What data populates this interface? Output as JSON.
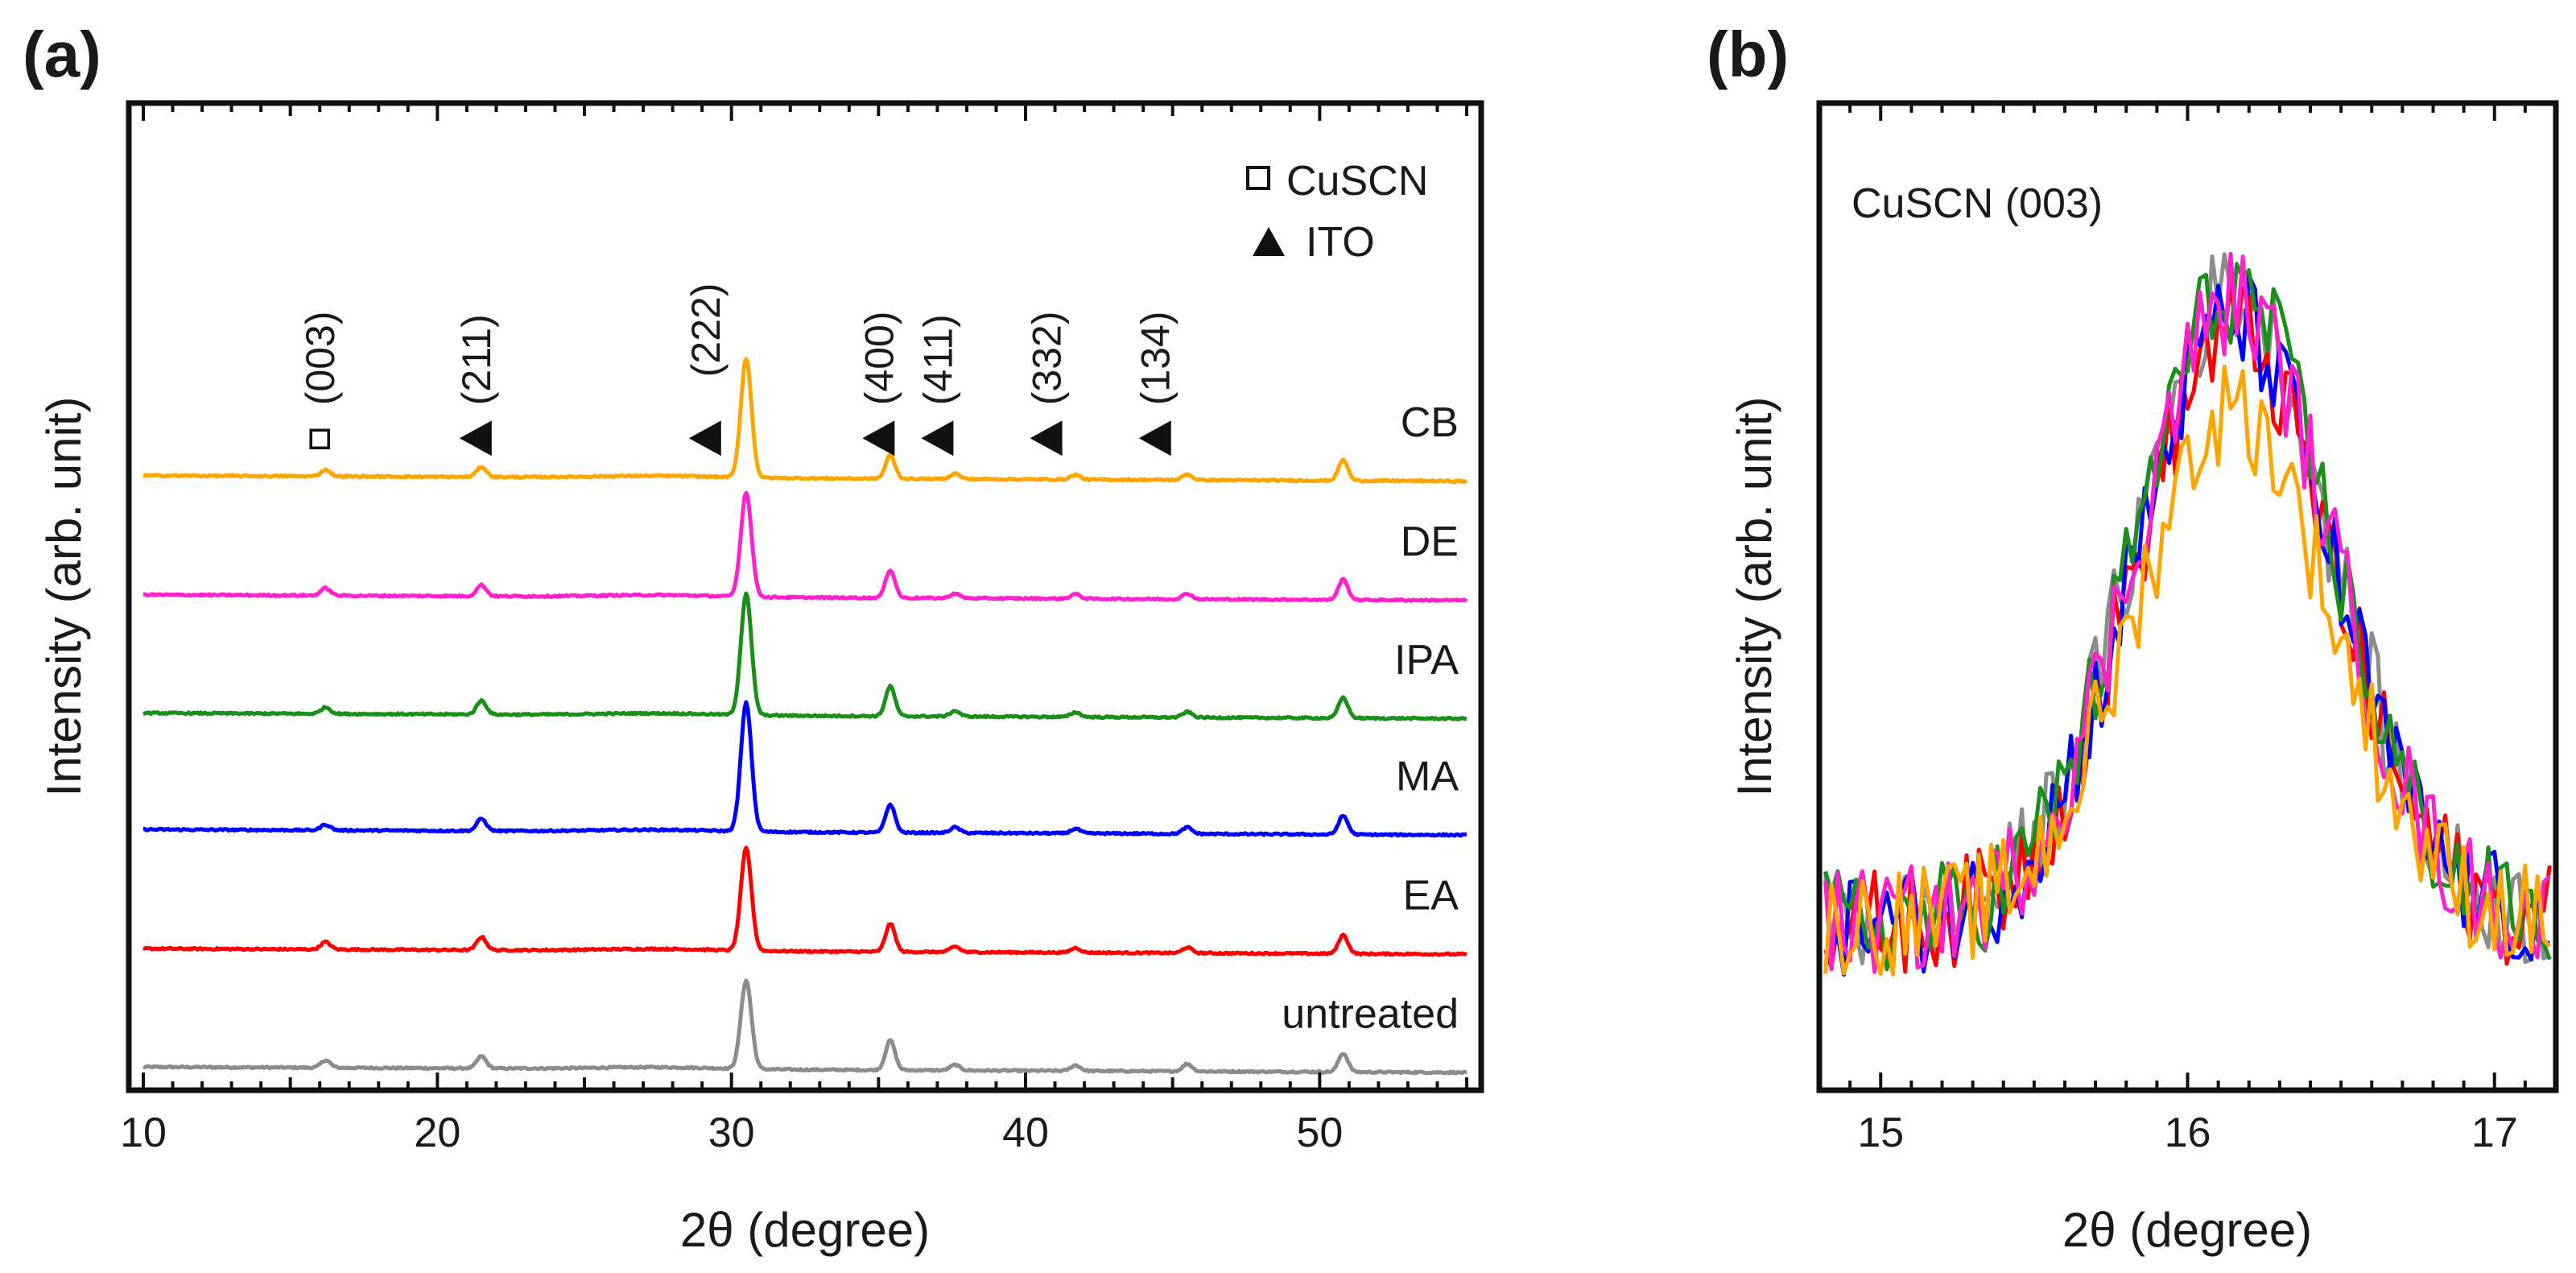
{
  "chart_data": [
    {
      "type": "line",
      "panel_label": "(a)",
      "xlabel": "2θ (degree)",
      "ylabel": "Intensity (arb. unit)",
      "xlim": [
        10,
        55
      ],
      "xticks": [
        10,
        20,
        30,
        40,
        50
      ],
      "xtick_labels": [
        "10",
        "20",
        "30",
        "40",
        "50"
      ],
      "ylim": [
        0,
        10.6
      ],
      "peaks_2theta": [
        16.2,
        21.5,
        30.5,
        35.4,
        37.6,
        41.7,
        45.5,
        50.8
      ],
      "series": [
        {
          "name": "untreated",
          "color": "#8c8c8c",
          "offset": 0.25,
          "peak_heights": [
            0.08,
            0.13,
            0.95,
            0.32,
            0.06,
            0.06,
            0.08,
            0.2
          ]
        },
        {
          "name": "EA",
          "color": "#ff0000",
          "offset": 1.52,
          "peak_heights": [
            0.08,
            0.14,
            1.1,
            0.3,
            0.06,
            0.05,
            0.06,
            0.2
          ]
        },
        {
          "name": "MA",
          "color": "#0000ff",
          "offset": 2.8,
          "peak_heights": [
            0.06,
            0.13,
            1.38,
            0.3,
            0.06,
            0.05,
            0.07,
            0.2
          ]
        },
        {
          "name": "IPA",
          "color": "#1a8f1a",
          "offset": 4.05,
          "peak_heights": [
            0.07,
            0.15,
            1.3,
            0.32,
            0.06,
            0.05,
            0.06,
            0.22
          ]
        },
        {
          "name": "DE",
          "color": "#ff22cc",
          "offset": 5.32,
          "peak_heights": [
            0.08,
            0.12,
            1.12,
            0.3,
            0.05,
            0.05,
            0.06,
            0.22
          ]
        },
        {
          "name": "CB",
          "color": "#ffa500",
          "offset": 6.6,
          "peak_heights": [
            0.07,
            0.11,
            1.28,
            0.25,
            0.06,
            0.05,
            0.06,
            0.22
          ]
        }
      ],
      "peak_annotations": [
        {
          "label": "(003)",
          "marker": "square",
          "x": 16.0
        },
        {
          "label": "(211)",
          "marker": "triangle",
          "x": 21.3
        },
        {
          "label": "(222)",
          "marker": "triangle",
          "x": 29.1
        },
        {
          "label": "(400)",
          "marker": "triangle",
          "x": 35.0
        },
        {
          "label": "(411)",
          "marker": "triangle",
          "x": 37.0
        },
        {
          "label": "(332)",
          "marker": "triangle",
          "x": 40.7
        },
        {
          "label": "(134)",
          "marker": "triangle",
          "x": 44.4
        }
      ],
      "legend": [
        {
          "marker": "square",
          "label": "CuSCN"
        },
        {
          "marker": "triangle",
          "label": "ITO"
        }
      ]
    },
    {
      "type": "line",
      "panel_label": "(b)",
      "annotation": "CuSCN (003)",
      "xlabel": "2θ (degree)",
      "ylabel": "Intensity (arb. unit)",
      "xlim": [
        14.8,
        17.2
      ],
      "xticks": [
        15,
        16,
        17
      ],
      "xtick_labels": [
        "15",
        "16",
        "17"
      ],
      "ylim": [
        0,
        1
      ],
      "peak_center": 16.15,
      "peak_sigma": 0.32,
      "baseline": 0.17,
      "peak_amplitude": 0.62,
      "series": [
        {
          "name": "untreated",
          "color": "#8c8c8c",
          "peak_amplitude": 0.64
        },
        {
          "name": "EA",
          "color": "#ff0000",
          "peak_amplitude": 0.6
        },
        {
          "name": "MA",
          "color": "#0000ff",
          "peak_amplitude": 0.61
        },
        {
          "name": "IPA",
          "color": "#1a8f1a",
          "peak_amplitude": 0.64
        },
        {
          "name": "DE",
          "color": "#ff22cc",
          "peak_amplitude": 0.63
        },
        {
          "name": "CB",
          "color": "#ffa500",
          "peak_amplitude": 0.52
        }
      ]
    }
  ]
}
